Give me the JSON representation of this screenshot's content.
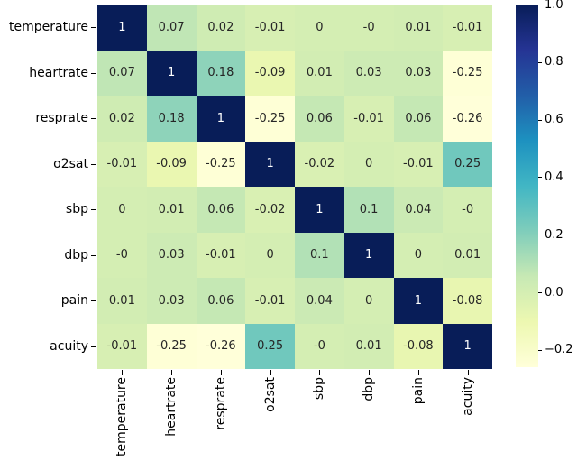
{
  "chart_data": {
    "type": "heatmap",
    "title": "",
    "xlabel": "",
    "ylabel": "",
    "categories": [
      "temperature",
      "heartrate",
      "resprate",
      "o2sat",
      "sbp",
      "dbp",
      "pain",
      "acuity"
    ],
    "matrix": [
      [
        "1",
        "0.07",
        "0.02",
        "-0.01",
        "0",
        "-0",
        "0.01",
        "-0.01"
      ],
      [
        "0.07",
        "1",
        "0.18",
        "-0.09",
        "0.01",
        "0.03",
        "0.03",
        "-0.25"
      ],
      [
        "0.02",
        "0.18",
        "1",
        "-0.25",
        "0.06",
        "-0.01",
        "0.06",
        "-0.26"
      ],
      [
        "-0.01",
        "-0.09",
        "-0.25",
        "1",
        "-0.02",
        "0",
        "-0.01",
        "0.25"
      ],
      [
        "0",
        "0.01",
        "0.06",
        "-0.02",
        "1",
        "0.1",
        "0.04",
        "-0"
      ],
      [
        "-0",
        "0.03",
        "-0.01",
        "0",
        "0.1",
        "1",
        "0",
        "0.01"
      ],
      [
        "0.01",
        "0.03",
        "0.06",
        "-0.01",
        "0.04",
        "0",
        "1",
        "-0.08"
      ],
      [
        "-0.01",
        "-0.25",
        "-0.26",
        "0.25",
        "-0",
        "0.01",
        "-0.08",
        "1"
      ]
    ],
    "vmin": -0.26,
    "vmax": 1.0,
    "x_tick_rotation": 90,
    "colormap": {
      "name": "YlGnBu",
      "stops": [
        "#ffffd9",
        "#edf8b1",
        "#c7e9b4",
        "#7fcdbb",
        "#41b6c4",
        "#1d91c0",
        "#225ea8",
        "#253494",
        "#081d58"
      ]
    },
    "colorbar": {
      "position": "right",
      "ticks": [
        {
          "value": 1.0,
          "label": "1.0"
        },
        {
          "value": 0.8,
          "label": "0.8"
        },
        {
          "value": 0.6,
          "label": "0.6"
        },
        {
          "value": 0.4,
          "label": "0.4"
        },
        {
          "value": 0.2,
          "label": "0.2"
        },
        {
          "value": 0.0,
          "label": "0.0"
        },
        {
          "value": -0.2,
          "label": "−0.2"
        }
      ]
    },
    "annotation_colors": {
      "on_light": "#262626",
      "on_dark": "#ffffff"
    }
  }
}
